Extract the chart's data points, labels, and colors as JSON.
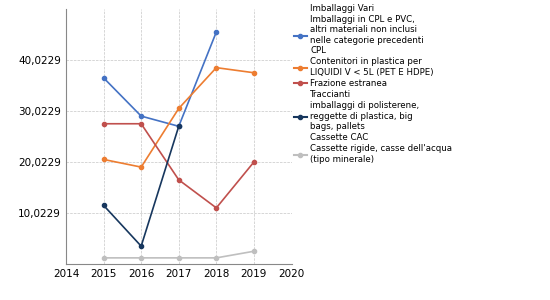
{
  "years": [
    2015,
    2016,
    2017,
    2018,
    2019
  ],
  "series": [
    {
      "name": "Imballaggi in CPL e PVC,\naltri materiali non inclusi\nnelle categorie precedenti\nCPL",
      "color": "#4472C4",
      "data": [
        [
          2015,
          36.5
        ],
        [
          2016,
          29.0
        ],
        [
          2017,
          27.0
        ],
        [
          2018,
          45.5
        ],
        [
          2019,
          null
        ]
      ]
    },
    {
      "name": "Contenitori in plastica per\nLIQUIDI V < 5L (PET E HDPE)",
      "color": "#ED7D31",
      "data": [
        [
          2015,
          20.5
        ],
        [
          2016,
          19.0
        ],
        [
          2017,
          30.5
        ],
        [
          2018,
          38.5
        ],
        [
          2019,
          37.5
        ]
      ]
    },
    {
      "name": "Frazione estranea",
      "color": "#C0504D",
      "data": [
        [
          2015,
          27.5
        ],
        [
          2016,
          27.5
        ],
        [
          2017,
          16.5
        ],
        [
          2018,
          11.0
        ],
        [
          2019,
          20.0
        ]
      ]
    },
    {
      "name": "Traccianti\nimballaggi di polisterene,\nreggette di plastica, big\nbags, pallets",
      "color": "#17375E",
      "data": [
        [
          2015,
          11.5
        ],
        [
          2016,
          3.5
        ],
        [
          2017,
          27.0
        ],
        [
          2018,
          null
        ],
        [
          2019,
          null
        ]
      ]
    },
    {
      "name": "Cassette rigide, casse dell'acqua\n(tipo minerale)",
      "color": "#BFBFBF",
      "data": [
        [
          2015,
          1.2
        ],
        [
          2016,
          1.2
        ],
        [
          2017,
          1.2
        ],
        [
          2018,
          1.2
        ],
        [
          2019,
          2.5
        ]
      ]
    }
  ],
  "legend_header_1": "Imballaggi Vari",
  "legend_header_2": "Cassette CAC",
  "yticks": [
    10.0229,
    20.0229,
    30.0229,
    40.0229
  ],
  "ytick_labels": [
    "10,0229",
    "20,0229",
    "30,0229",
    "40,0229"
  ],
  "xlim": [
    2014,
    2020
  ],
  "ylim": [
    0,
    50
  ],
  "bg_color": "#FFFFFF",
  "grid_color": "#C0C0C0",
  "font_size": 7.5
}
